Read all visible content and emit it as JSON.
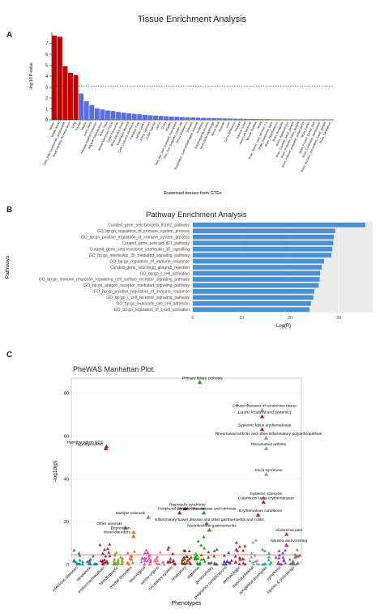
{
  "panels": {
    "a": "A",
    "b": "B",
    "c": "C"
  },
  "chart_data": [
    {
      "type": "bar",
      "title": "Tissue Enrichment Analysis",
      "xlabel": "Examined tissues from GTEx",
      "ylabel": "-log 10 P-value",
      "ylim": [
        0,
        8
      ],
      "yticks": [
        0,
        1,
        2,
        3,
        4,
        5,
        6,
        7
      ],
      "threshold": 3.1,
      "colors": {
        "significant": "#c00000",
        "other": "#5b6ee1"
      },
      "categories": [
        "Spleen",
        "Whole Blood",
        "Cells_EBV-transformed_lymphocytes",
        "Small_Intestine_Terminal_Ileum",
        "Lung",
        "Thyroid",
        "Vagina",
        "Artery_Aorta",
        "Adipose_Visceral_Omentum",
        "Adipose_Subcutaneous",
        "Artery_Tibial",
        "Breast_Mammary_Tissue",
        "Colon_Transverse",
        "Minor_Salivary_Gland",
        "Esophagus_Mucosa",
        "Cells_Cultured_fibroblasts",
        "Fallopian_Tube",
        "Kidney_Cortex",
        "Artery_Coronary",
        "Colon_Sigmoid",
        "Uterus",
        "Ovary",
        "Bladder",
        "Skin_Not_Sun_Exposed_Suprapubic",
        "Skin_Sun_Exposed_Lower_leg",
        "Cervix_Endocervix",
        "Stomach",
        "Esophagus_Gastroesophageal_Junction",
        "Pancreas",
        "Esophagus_Muscularis",
        "Heart_Atrial_Appendage",
        "Nerve_Tibial",
        "Prostate",
        "Liver",
        "Cervix_Ectocervix",
        "Pituitary",
        "Adrenal_Gland",
        "Heart_Left_Ventricle",
        "Muscle_Skeletal",
        "Testis",
        "Brain_Spinal_cord_cervical_c-1",
        "Brain_Substantia_nigra",
        "Brain_Hypothalamus",
        "Brain_Amygdala",
        "Brain_Hippocampus",
        "Brain_Caudate_basal_ganglia",
        "Brain_Putamen_basal_ganglia",
        "Brain_Anterior_cingulate_cortex_BA24",
        "Brain_Cortex",
        "Brain_Frontal_Cortex_BA9",
        "Brain_Cerebellar_Hemisphere",
        "Brain_Nucleus_accumbens_basal_ganglia",
        "Brain_Cerebellum"
      ],
      "values": [
        7.7,
        7.6,
        4.9,
        4.3,
        4.1,
        2.4,
        1.7,
        1.35,
        1.05,
        0.95,
        0.85,
        0.8,
        0.72,
        0.66,
        0.6,
        0.55,
        0.5,
        0.46,
        0.42,
        0.39,
        0.36,
        0.33,
        0.3,
        0.28,
        0.26,
        0.24,
        0.22,
        0.2,
        0.18,
        0.17,
        0.15,
        0.14,
        0.13,
        0.12,
        0.11,
        0.1,
        0.09,
        0.08,
        0.07,
        0.06,
        0.06,
        0.05,
        0.05,
        0.04,
        0.04,
        0.03,
        0.03,
        0.03,
        0.02,
        0.02,
        0.02,
        0.01,
        0.01
      ],
      "significant_count": 5
    },
    {
      "type": "bar",
      "orientation": "horizontal",
      "title": "Pathway Enrichment Analysis",
      "xlabel": "-Log(P)",
      "ylabel": "Pathways",
      "xlim": [
        0,
        37
      ],
      "xticks": [
        0,
        10,
        20,
        30
      ],
      "color": "#4a8fd1",
      "categories": [
        "Curated_gene_sets:biocarta_th1th2_pathway",
        "GO_bp:go_regulation_of_immune_system_process",
        "GO_bp:go_positive_regulation_of_immune_system_process",
        "Curated_gene_sets:pid_il27_pathway",
        "Curated_gene_sets:reactome_interleukin_35_signalling",
        "GO_bp:go_interleukin_35_mediated_signaling_pathway",
        "GO_bp:go_regulation_of_immune_response",
        "Curated_gene_sets:kegg_allograft_rejection",
        "GO_bp:go_t_cell_activation",
        "GO_bp:go_immune_response_regulating_cell_surface_receptor_signaling_pathway",
        "GO_bp:go_antigen_receptor_mediated_signaling_pathway",
        "GO_bp:go_positive_regulation_of_immune_response",
        "GO_bp:go_t_cell_receptor_signaling_pathway",
        "GO_bp:go_leukocyte_cell_cell_adhesion",
        "GO_bp:go_regulation_of_t_cell_activation"
      ],
      "values": [
        35.5,
        29.3,
        29.0,
        28.9,
        28.7,
        28.5,
        27.0,
        26.5,
        26.2,
        26.1,
        25.9,
        25.0,
        24.8,
        24.3,
        24.0
      ]
    },
    {
      "type": "scatter",
      "title": "PheWAS Manhattan Plot",
      "xlabel": "Phenotypes",
      "ylabel": "-log10(p)",
      "ylim": [
        0,
        87
      ],
      "yticks": [
        0,
        20,
        40,
        60,
        80
      ],
      "categories": [
        "infectious diseases",
        "neoplasms",
        "endocrine/metabolic",
        "hematopoietic",
        "mental disorders",
        "neurological",
        "sense organs",
        "circulatory system",
        "respiratory",
        "digestive",
        "genitourinary",
        "pregnancy complications",
        "dermatologic",
        "musculoskeletal",
        "congenital anomalies",
        "symptoms",
        "injuries & poisonings"
      ],
      "category_colors": [
        "#1a8f8f",
        "#2f7fb5",
        "#a0243a",
        "#7fa834",
        "#e8731e",
        "#d94fb8",
        "#d47d9a",
        "#b02b2b",
        "#8c3e1f",
        "#1aa01a",
        "#5a5a5a",
        "#6c3ab0",
        "#c02030",
        "#9a9a9a",
        "#20b090",
        "#9a40b0",
        "#7a7a7a"
      ],
      "annotations": [
        {
          "label": "Primary biliary cirrhosis",
          "x": 9,
          "y": 85,
          "cat": 9
        },
        {
          "label": "Diffuse diseases of connective tissue",
          "x": 13.6,
          "y": 72,
          "cat": 13
        },
        {
          "label": "Lupus (localized and systemic)",
          "x": 13.6,
          "y": 69,
          "cat": 12
        },
        {
          "label": "Systemic lupus erythematosus",
          "x": 13.6,
          "y": 63,
          "cat": 12
        },
        {
          "label": "Rheumatoid arthritis and other inflammatory polyarthropathies",
          "x": 13.9,
          "y": 59,
          "cat": 13
        },
        {
          "label": "Rheumatoid arthritis",
          "x": 13.9,
          "y": 54,
          "cat": 13
        },
        {
          "label": "Hypothyroidism NOS",
          "x": 2.1,
          "y": 55,
          "cat": 2
        },
        {
          "label": "Hypothyroidism",
          "x": 2.05,
          "y": 54,
          "cat": 2
        },
        {
          "label": "Sicca syndrome",
          "x": 13.9,
          "y": 42,
          "cat": 13
        },
        {
          "label": "Systemic sclerosis",
          "x": 13.7,
          "y": 31,
          "cat": 13
        },
        {
          "label": "Cutaneous lupus erythematosus",
          "x": 13.7,
          "y": 29,
          "cat": 12
        },
        {
          "label": "Raynaud's syndrome",
          "x": 7.9,
          "y": 26,
          "cat": 7
        },
        {
          "label": "Peripheral vascular disease",
          "x": 7.5,
          "y": 24,
          "cat": 7
        },
        {
          "label": "Chronic liver disease and cirrhosis",
          "x": 9.3,
          "y": 24,
          "cat": 9
        },
        {
          "label": "Multiple sclerosis",
          "x": 5.2,
          "y": 22,
          "cat": 5
        },
        {
          "label": "Erythematous conditions",
          "x": 13.3,
          "y": 23,
          "cat": 12
        },
        {
          "label": "Inflammatory bowel disease and other gastroenteritis and colitis",
          "x": 9.5,
          "y": 19,
          "cat": 9
        },
        {
          "label": "Other anemias",
          "x": 3.5,
          "y": 17,
          "cat": 3
        },
        {
          "label": "Depression",
          "x": 4.1,
          "y": 15,
          "cat": 4
        },
        {
          "label": "Noninfectious gastroenteritis",
          "x": 9.7,
          "y": 16,
          "cat": 9
        },
        {
          "label": "Abdominal pain",
          "x": 15.4,
          "y": 14,
          "cat": 15
        },
        {
          "label": "Mood disorders",
          "x": 4.1,
          "y": 13,
          "cat": 4
        },
        {
          "label": "Nausea and vomiting",
          "x": 15.4,
          "y": 9,
          "cat": 15
        }
      ],
      "significance_line": 4.5
    }
  ]
}
